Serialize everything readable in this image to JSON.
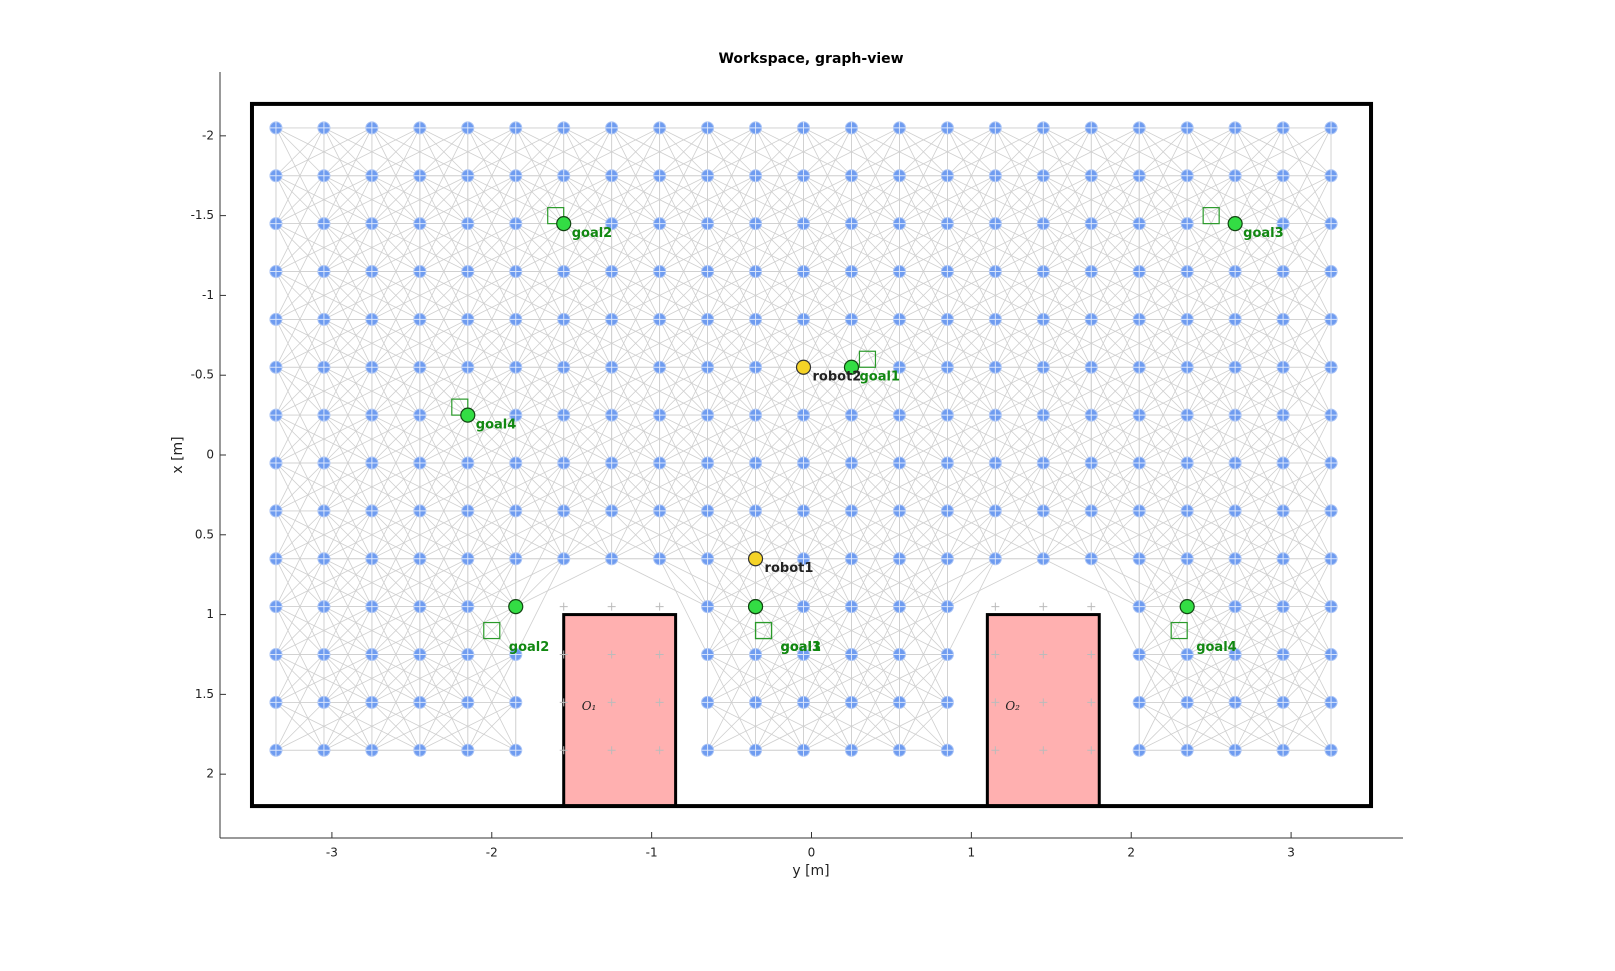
{
  "chart_data": {
    "type": "graph",
    "title": "Workspace, graph-view",
    "xlabel": "y [m]",
    "ylabel": "x [m]",
    "xlim": [
      -3.7,
      3.7
    ],
    "ylim": [
      -2.4,
      2.4
    ],
    "y_reversed": true,
    "xticks": [
      -3,
      -2,
      -1,
      0,
      1,
      2,
      3
    ],
    "yticks": [
      -2,
      -1.5,
      -1,
      -0.5,
      0,
      0.5,
      1,
      1.5,
      2
    ],
    "node_columns": [
      -3.35,
      -3.05,
      -2.75,
      -2.45,
      -2.15,
      -1.85,
      -1.55,
      -1.25,
      -0.95,
      -0.65,
      -0.35,
      -0.05,
      0.25,
      0.55,
      0.85,
      1.15,
      1.45,
      1.75,
      2.05,
      2.35,
      2.65,
      2.95,
      3.25
    ],
    "node_rows": [
      -2.05,
      -1.75,
      -1.45,
      -1.15,
      -0.85,
      -0.55,
      -0.25,
      0.05,
      0.35,
      0.65,
      0.95,
      1.25,
      1.55,
      1.85
    ],
    "node_color": "#6f9cf0",
    "workspace": {
      "y": [
        -3.5,
        3.5
      ],
      "x": [
        -2.2,
        2.2
      ]
    },
    "obstacles": [
      {
        "label": "O₁",
        "y": [
          -1.55,
          -0.85
        ],
        "x": [
          1.0,
          2.2
        ],
        "color": "#ffb0b0"
      },
      {
        "label": "O₂",
        "y": [
          1.1,
          1.8
        ],
        "x": [
          1.0,
          2.2
        ],
        "color": "#ffb0b0"
      }
    ],
    "robots": [
      {
        "name": "robot1",
        "y": -0.35,
        "x": 0.65,
        "color": "#f5d327"
      },
      {
        "name": "robot2",
        "y": -0.05,
        "x": -0.55,
        "color": "#f5d327"
      }
    ],
    "goal_color": "#33dd44",
    "goal_sets": [
      {
        "goals": [
          {
            "name": "goal1",
            "y": 0.25,
            "x": -0.55,
            "square_y": 0.35,
            "square_x": -0.6
          },
          {
            "name": "goal2",
            "y": -1.55,
            "x": -1.45,
            "square_y": -1.6,
            "square_x": -1.5
          },
          {
            "name": "goal3",
            "y": 2.65,
            "x": -1.45,
            "square_y": 2.5,
            "square_x": -1.5
          },
          {
            "name": "goal4",
            "y": -2.15,
            "x": -0.25,
            "square_y": -2.2,
            "square_x": -0.3
          }
        ]
      },
      {
        "goals": [
          {
            "name": "goal1",
            "y": -0.35,
            "x": 0.95,
            "square_y": -0.3,
            "square_x": 1.1
          },
          {
            "name": "goal2",
            "y": -1.85,
            "x": 0.95,
            "square_y": -2.0,
            "square_x": 1.1
          },
          {
            "name": "goal3",
            "y": -0.35,
            "x": 0.95,
            "square_y": -0.3,
            "square_x": 1.1
          },
          {
            "name": "goal4",
            "y": 2.35,
            "x": 0.95,
            "square_y": 2.3,
            "square_x": 1.1
          }
        ]
      }
    ]
  }
}
